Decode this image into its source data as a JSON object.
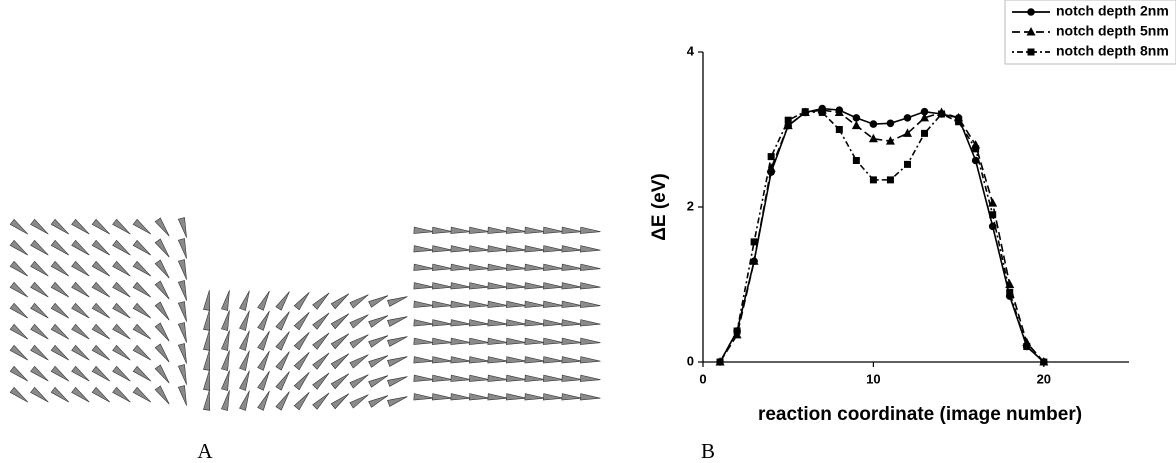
{
  "panel_labels": {
    "a": "A",
    "b": "B"
  },
  "chart_data": {
    "type": "line",
    "y_label": "ΔE (eV)",
    "x_label": "reaction coordinate (image number)",
    "x": [
      1,
      2,
      3,
      4,
      5,
      6,
      7,
      8,
      9,
      10,
      11,
      12,
      13,
      14,
      15,
      16,
      17,
      18,
      19,
      20
    ],
    "xlim": [
      0,
      25
    ],
    "xticks": [
      0,
      10,
      20
    ],
    "ylim": [
      0,
      4
    ],
    "yticks": [
      0,
      2,
      4
    ],
    "legend": "upper right",
    "series": [
      {
        "name": "notch depth 2nm",
        "color": "#000000",
        "marker": "circle",
        "dash": "solid",
        "values": [
          0,
          0.4,
          1.3,
          2.45,
          3.05,
          3.22,
          3.27,
          3.25,
          3.15,
          3.07,
          3.08,
          3.15,
          3.23,
          3.2,
          3.15,
          2.6,
          1.75,
          0.85,
          0.2,
          0
        ]
      },
      {
        "name": "notch depth 5nm",
        "color": "#000000",
        "marker": "triangle",
        "dash": "dashed",
        "values": [
          0,
          0.35,
          1.3,
          2.5,
          3.05,
          3.22,
          3.25,
          3.22,
          3.05,
          2.88,
          2.85,
          2.95,
          3.15,
          3.22,
          3.15,
          2.8,
          2.05,
          1.0,
          0.25,
          0
        ]
      },
      {
        "name": "notch depth 8nm",
        "color": "#000000",
        "marker": "square",
        "dash": "dashdot",
        "values": [
          0,
          0.4,
          1.55,
          2.65,
          3.12,
          3.23,
          3.22,
          3.0,
          2.6,
          2.35,
          2.35,
          2.55,
          2.95,
          3.2,
          3.1,
          2.75,
          1.9,
          0.9,
          0.2,
          0
        ]
      }
    ]
  }
}
